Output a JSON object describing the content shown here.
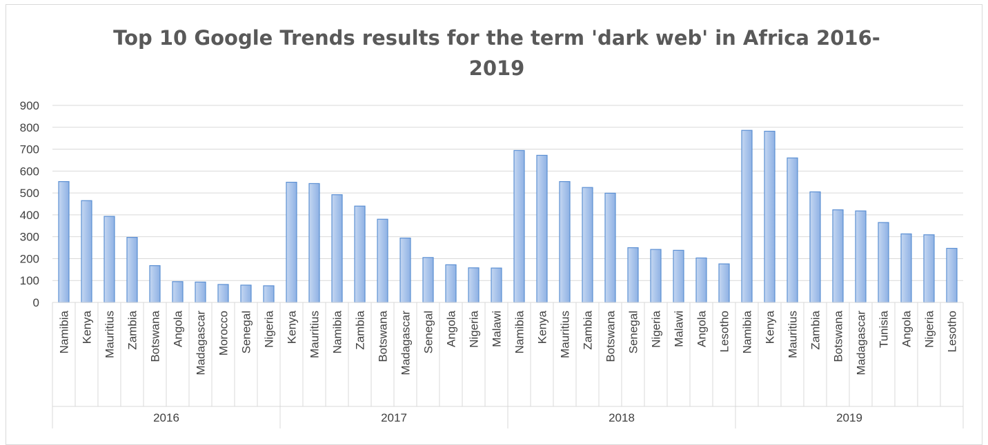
{
  "chart_data": {
    "type": "bar",
    "title_line1": "Top 10 Google Trends results for the term 'dark web' in Africa 2016-",
    "title_line2": "2019",
    "ylim": [
      0,
      900
    ],
    "yticks": [
      "0",
      "100",
      "200",
      "300",
      "400",
      "500",
      "600",
      "700",
      "800",
      "900"
    ],
    "grid": true,
    "groups": [
      {
        "label": "2016",
        "categories": [
          "Namibia",
          "Kenya",
          "Mauritius",
          "Zambia",
          "Botswana",
          "Angola",
          "Madagascar",
          "Morocco",
          "Senegal",
          "Nigeria"
        ],
        "values": [
          552,
          465,
          393,
          297,
          168,
          95,
          93,
          82,
          79,
          76
        ]
      },
      {
        "label": "2017",
        "categories": [
          "Kenya",
          "Mauritius",
          "Namibia",
          "Zambia",
          "Botswana",
          "Madagascar",
          "Senegal",
          "Angola",
          "Nigeria",
          "Malawi"
        ],
        "values": [
          549,
          543,
          492,
          440,
          380,
          294,
          205,
          172,
          158,
          157
        ]
      },
      {
        "label": "2018",
        "categories": [
          "Namibia",
          "Kenya",
          "Mauritius",
          "Zambia",
          "Botswana",
          "Senegal",
          "Nigeria",
          "Malawi",
          "Angola",
          "Lesotho"
        ],
        "values": [
          694,
          672,
          552,
          525,
          499,
          250,
          242,
          238,
          203,
          176
        ]
      },
      {
        "label": "2019",
        "categories": [
          "Namibia",
          "Kenya",
          "Mauritius",
          "Zambia",
          "Botswana",
          "Madagascar",
          "Tunisia",
          "Angola",
          "Nigeria",
          "Lesotho"
        ],
        "values": [
          786,
          782,
          660,
          505,
          423,
          418,
          365,
          313,
          309,
          247
        ]
      }
    ],
    "bar_color": "#a9c4eb",
    "bar_edge_color": "#5b8fd3",
    "grid_color": "#d9d9d9"
  }
}
